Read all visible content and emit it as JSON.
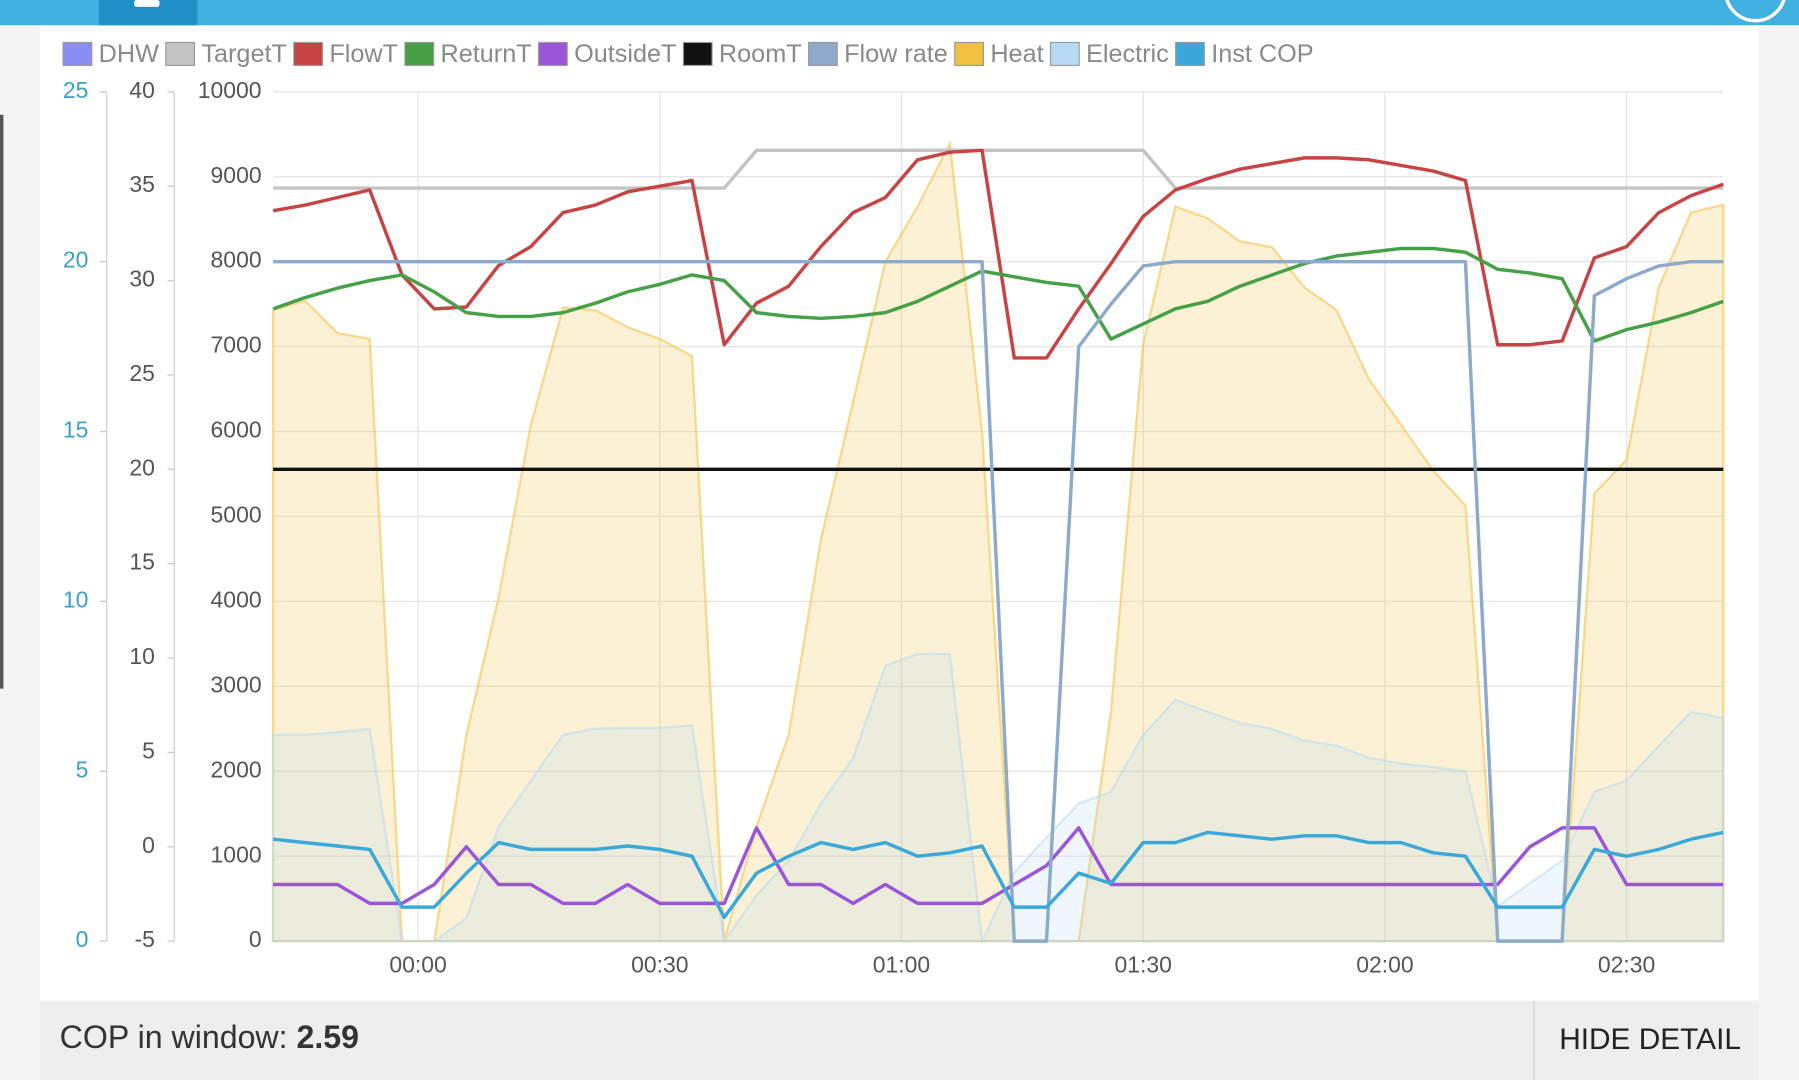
{
  "chart_data": {
    "type": "line",
    "x": [
      -18,
      -14,
      -10,
      -6,
      -2,
      2,
      6,
      10,
      14,
      18,
      22,
      26,
      30,
      34,
      38,
      42,
      46,
      50,
      54,
      58,
      62,
      66,
      70,
      74,
      78,
      82,
      86,
      90,
      94,
      98,
      102,
      106,
      110,
      114,
      118,
      122,
      126,
      130,
      134,
      138,
      142,
      146,
      150,
      154,
      158,
      162
    ],
    "xlim": [
      -18,
      162
    ],
    "xticks": [
      {
        "value": 0,
        "label": "00:00"
      },
      {
        "value": 30,
        "label": "00:30"
      },
      {
        "value": 60,
        "label": "01:00"
      },
      {
        "value": 90,
        "label": "01:30"
      },
      {
        "value": 120,
        "label": "02:00"
      },
      {
        "value": 150,
        "label": "02:30"
      }
    ],
    "ylim": [
      0,
      10000
    ],
    "yticks": [
      0,
      1000,
      2000,
      3000,
      4000,
      5000,
      6000,
      7000,
      8000,
      9000,
      10000
    ],
    "y2lim": [
      -5,
      40
    ],
    "y2ticks": [
      -5,
      0,
      5,
      10,
      15,
      20,
      25,
      30,
      35,
      40
    ],
    "y3lim": [
      0,
      25
    ],
    "y3ticks": [
      0,
      5,
      10,
      15,
      20,
      25
    ],
    "grid": true,
    "legend": "top",
    "series": [
      {
        "name": "DHW",
        "color": "#8c8cf5"
      },
      {
        "name": "TargetT",
        "color": "#c4c4c4",
        "axis": "y2",
        "values": [
          34.9,
          34.9,
          34.9,
          34.9,
          34.9,
          34.9,
          34.9,
          34.9,
          34.9,
          34.9,
          34.9,
          34.9,
          34.9,
          34.9,
          34.9,
          36.9,
          36.9,
          36.9,
          36.9,
          36.9,
          36.9,
          36.9,
          36.9,
          36.9,
          36.9,
          36.9,
          36.9,
          36.9,
          34.9,
          34.9,
          34.9,
          34.9,
          34.9,
          34.9,
          34.9,
          34.9,
          34.9,
          34.9,
          34.9,
          34.9,
          34.9,
          34.9,
          34.9,
          34.9,
          34.9,
          34.9
        ]
      },
      {
        "name": "FlowT",
        "color": "#c84444",
        "axis": "y2",
        "values": [
          33.7,
          34.0,
          34.4,
          34.8,
          30.3,
          28.5,
          28.6,
          30.8,
          31.8,
          33.6,
          34.0,
          34.7,
          35.0,
          35.3,
          26.6,
          28.8,
          29.7,
          31.8,
          33.6,
          34.4,
          36.4,
          36.8,
          36.9,
          25.9,
          25.9,
          28.5,
          30.9,
          33.4,
          34.8,
          35.4,
          35.9,
          36.2,
          36.5,
          36.5,
          36.4,
          36.1,
          35.8,
          35.3,
          26.6,
          26.6,
          26.8,
          31.2,
          31.8,
          33.6,
          34.5,
          35.1
        ]
      },
      {
        "name": "ReturnT",
        "color": "#46a046",
        "axis": "y2",
        "values": [
          28.5,
          29.1,
          29.6,
          30.0,
          30.3,
          29.4,
          28.3,
          28.1,
          28.1,
          28.3,
          28.8,
          29.4,
          29.8,
          30.3,
          30.0,
          28.3,
          28.1,
          28.0,
          28.1,
          28.3,
          28.9,
          29.7,
          30.5,
          30.2,
          29.9,
          29.7,
          26.9,
          27.7,
          28.5,
          28.9,
          29.7,
          30.3,
          30.9,
          31.3,
          31.5,
          31.7,
          31.7,
          31.5,
          30.6,
          30.4,
          30.1,
          26.8,
          27.4,
          27.8,
          28.3,
          28.9
        ]
      },
      {
        "name": "OutsideT",
        "color": "#9b55d8",
        "axis": "y2",
        "values": [
          -2,
          -2,
          -2,
          -3,
          -3,
          -2,
          0,
          -2,
          -2,
          -3,
          -3,
          -2,
          -3,
          -3,
          -3,
          1,
          -2,
          -2,
          -3,
          -2,
          -3,
          -3,
          -3,
          -2,
          -1,
          1,
          -2,
          -2,
          -2,
          -2,
          -2,
          -2,
          -2,
          -2,
          -2,
          -2,
          -2,
          -2,
          -2,
          0,
          1,
          1,
          -2,
          -2,
          -2,
          -2
        ]
      },
      {
        "name": "RoomT",
        "color": "#111111",
        "axis": "y2",
        "values": [
          20,
          20,
          20,
          20,
          20,
          20,
          20,
          20,
          20,
          20,
          20,
          20,
          20,
          20,
          20,
          20,
          20,
          20,
          20,
          20,
          20,
          20,
          20,
          20,
          20,
          20,
          20,
          20,
          20,
          20,
          20,
          20,
          20,
          20,
          20,
          20,
          20,
          20,
          20,
          20,
          20,
          20,
          20,
          20,
          20,
          20
        ]
      },
      {
        "name": "Flow rate",
        "color": "#8eaacb",
        "values": [
          8000,
          8000,
          8000,
          8000,
          8000,
          8000,
          8000,
          8000,
          8000,
          8000,
          8000,
          8000,
          8000,
          8000,
          8000,
          8000,
          8000,
          8000,
          8000,
          8000,
          8000,
          8000,
          8000,
          0,
          0,
          7000,
          7500,
          7950,
          8000,
          8000,
          8000,
          8000,
          8000,
          8000,
          8000,
          8000,
          8000,
          8000,
          0,
          0,
          0,
          7600,
          7800,
          7950,
          8000,
          8000
        ]
      },
      {
        "name": "Heat",
        "color": "#f0c040",
        "fill": true,
        "values": [
          7430,
          7540,
          7160,
          7090,
          0,
          0,
          2430,
          4050,
          6080,
          7460,
          7430,
          7230,
          7090,
          6890,
          0,
          1350,
          2430,
          4730,
          6350,
          8000,
          8650,
          9390,
          6000,
          0,
          0,
          0,
          2700,
          7030,
          8650,
          8510,
          8240,
          8170,
          7700,
          7430,
          6620,
          6080,
          5540,
          5130,
          0,
          0,
          0,
          5270,
          5670,
          7700,
          8580,
          8670
        ]
      },
      {
        "name": "Electric",
        "color": "#b6daf6",
        "fill": true,
        "values": [
          2430,
          2430,
          2460,
          2500,
          0,
          0,
          270,
          1350,
          1890,
          2430,
          2500,
          2510,
          2510,
          2540,
          0,
          540,
          950,
          1620,
          2160,
          3240,
          3380,
          3380,
          0,
          810,
          1220,
          1620,
          1760,
          2430,
          2840,
          2700,
          2570,
          2500,
          2360,
          2300,
          2160,
          2090,
          2050,
          2000,
          410,
          680,
          950,
          1760,
          1890,
          2300,
          2700,
          2630
        ]
      },
      {
        "name": "Inst COP",
        "color": "#3aa8d8",
        "axis": "y3",
        "values": [
          3.0,
          2.9,
          2.8,
          2.7,
          1.0,
          1.0,
          2.0,
          2.9,
          2.7,
          2.7,
          2.7,
          2.8,
          2.7,
          2.5,
          0.7,
          2.0,
          2.5,
          2.9,
          2.7,
          2.9,
          2.5,
          2.6,
          2.8,
          1.0,
          1.0,
          2.0,
          1.7,
          2.9,
          2.9,
          3.2,
          3.1,
          3.0,
          3.1,
          3.1,
          2.9,
          2.9,
          2.6,
          2.5,
          1.0,
          1.0,
          1.0,
          2.7,
          2.5,
          2.7,
          3.0,
          3.2
        ]
      }
    ]
  },
  "footer": {
    "label": "COP in window:",
    "value": 2.59,
    "button": "HIDE DETAIL"
  }
}
